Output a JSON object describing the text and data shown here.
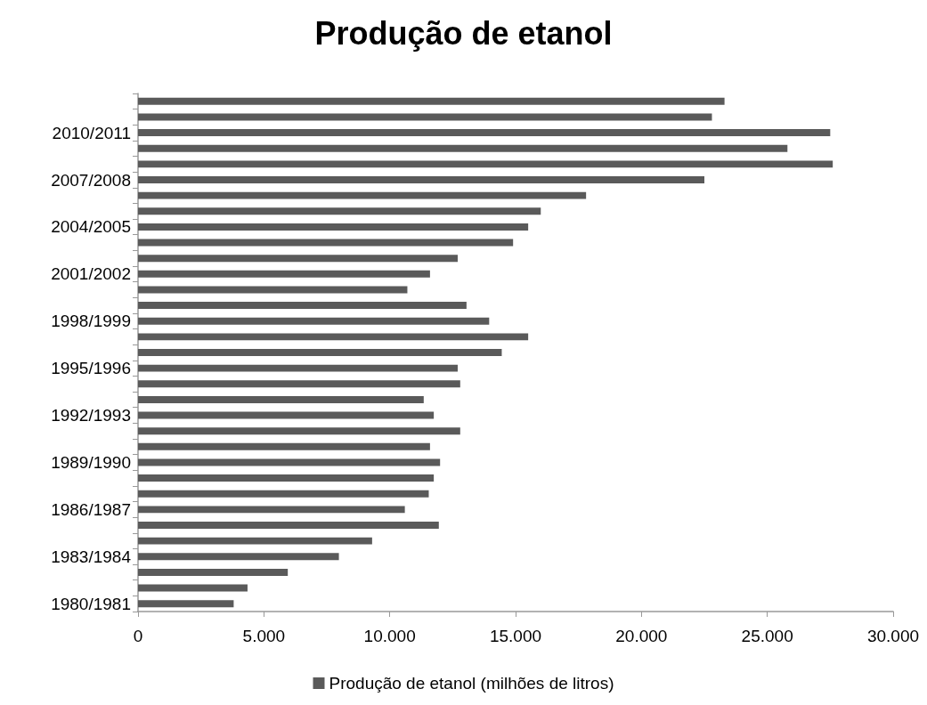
{
  "chart_data": {
    "type": "bar",
    "orientation": "horizontal",
    "title": "Produção de etanol",
    "categories": [
      null,
      null,
      "2010/2011",
      null,
      null,
      "2007/2008",
      null,
      null,
      "2004/2005",
      null,
      null,
      "2001/2002",
      null,
      null,
      "1998/1999",
      null,
      null,
      "1995/1996",
      null,
      null,
      "1992/1993",
      null,
      null,
      "1989/1990",
      null,
      null,
      "1986/1987",
      null,
      null,
      "1983/1984",
      null,
      null,
      "1980/1981"
    ],
    "series": [
      {
        "name": "Produção de etanol (milhões de litros)",
        "color": "#5a5a5a",
        "values": [
          23300,
          22800,
          27500,
          25800,
          27600,
          22500,
          17800,
          16000,
          15500,
          14900,
          12700,
          11600,
          10700,
          13050,
          13950,
          15500,
          14450,
          12700,
          12800,
          11350,
          11750,
          12800,
          11600,
          12000,
          11750,
          11550,
          10600,
          11950,
          9300,
          7980,
          5950,
          4350,
          3800
        ]
      }
    ],
    "xlim": [
      0,
      30000
    ],
    "xticks": [
      0,
      {
        "value": 5000,
        "label": "5.000"
      },
      {
        "value": 10000,
        "label": "10.000"
      },
      {
        "value": 15000,
        "label": "15.000"
      },
      {
        "value": 20000,
        "label": "20.000"
      },
      {
        "value": 25000,
        "label": "25.000"
      },
      {
        "value": 30000,
        "label": "30.000"
      }
    ],
    "grid": false,
    "legend": "bottom"
  }
}
